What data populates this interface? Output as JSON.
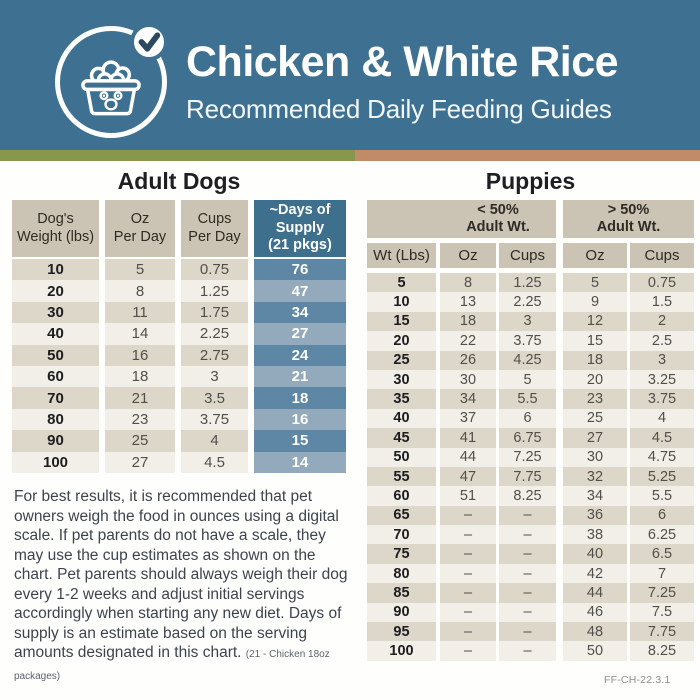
{
  "header": {
    "title": "Chicken & White Rice",
    "subtitle": "Recommended Daily Feeding Guides",
    "logo_icon": "dog-food-bowl-with-paw",
    "badge_icon": "checkmark"
  },
  "colors": {
    "header_bg": "#3e7191",
    "divider_green": "#87974b",
    "divider_terracotta": "#c18a69",
    "table_header_beige": "#cbc4b4",
    "row_beige": "#ddd7c9",
    "row_light": "#f2efe8",
    "days_header_blue": "#3e708e",
    "days_row_dark": "#5d87a4",
    "days_row_light": "#93aabd",
    "checkmark_navy": "#2b4a60"
  },
  "adult_table": {
    "title": "Adult Dogs",
    "columns": [
      "Dog's\nWeight (lbs)",
      "Oz\nPer Day",
      "Cups\nPer Day",
      "~Days of\nSupply\n(21 pkgs)"
    ],
    "rows": [
      [
        "10",
        "5",
        "0.75",
        "76"
      ],
      [
        "20",
        "8",
        "1.25",
        "47"
      ],
      [
        "30",
        "11",
        "1.75",
        "34"
      ],
      [
        "40",
        "14",
        "2.25",
        "27"
      ],
      [
        "50",
        "16",
        "2.75",
        "24"
      ],
      [
        "60",
        "18",
        "3",
        "21"
      ],
      [
        "70",
        "21",
        "3.5",
        "18"
      ],
      [
        "80",
        "23",
        "3.75",
        "16"
      ],
      [
        "90",
        "25",
        "4",
        "15"
      ],
      [
        "100",
        "27",
        "4.5",
        "14"
      ]
    ]
  },
  "puppies_table": {
    "title": "Puppies",
    "group_headers": [
      "< 50%\nAdult Wt.",
      "> 50%\nAdult Wt."
    ],
    "columns": [
      "Wt (Lbs)",
      "Oz",
      "Cups",
      "Oz",
      "Cups"
    ],
    "rows": [
      [
        "5",
        "8",
        "1.25",
        "5",
        "0.75"
      ],
      [
        "10",
        "13",
        "2.25",
        "9",
        "1.5"
      ],
      [
        "15",
        "18",
        "3",
        "12",
        "2"
      ],
      [
        "20",
        "22",
        "3.75",
        "15",
        "2.5"
      ],
      [
        "25",
        "26",
        "4.25",
        "18",
        "3"
      ],
      [
        "30",
        "30",
        "5",
        "20",
        "3.25"
      ],
      [
        "35",
        "34",
        "5.5",
        "23",
        "3.75"
      ],
      [
        "40",
        "37",
        "6",
        "25",
        "4"
      ],
      [
        "45",
        "41",
        "6.75",
        "27",
        "4.5"
      ],
      [
        "50",
        "44",
        "7.25",
        "30",
        "4.75"
      ],
      [
        "55",
        "47",
        "7.75",
        "32",
        "5.25"
      ],
      [
        "60",
        "51",
        "8.25",
        "34",
        "5.5"
      ],
      [
        "65",
        "–",
        "–",
        "36",
        "6"
      ],
      [
        "70",
        "–",
        "–",
        "38",
        "6.25"
      ],
      [
        "75",
        "–",
        "–",
        "40",
        "6.5"
      ],
      [
        "80",
        "–",
        "–",
        "42",
        "7"
      ],
      [
        "85",
        "–",
        "–",
        "44",
        "7.25"
      ],
      [
        "90",
        "–",
        "–",
        "46",
        "7.5"
      ],
      [
        "95",
        "–",
        "–",
        "48",
        "7.75"
      ],
      [
        "100",
        "–",
        "–",
        "50",
        "8.25"
      ]
    ]
  },
  "note": {
    "text": "For best results, it is recommended that pet owners weigh the food in ounces using a digital scale. If pet parents do not have a scale, they may use the cup estimates as shown on the chart. Pet parents should always weigh their dog every 1-2 weeks and adjust initial servings accordingly when starting any new diet. Days of supply is an estimate based on the serving amounts designated in this chart. ",
    "packages_note": "(21 - Chicken 18oz packages)"
  },
  "footer": {
    "code": "FF-CH-22.3.1"
  }
}
